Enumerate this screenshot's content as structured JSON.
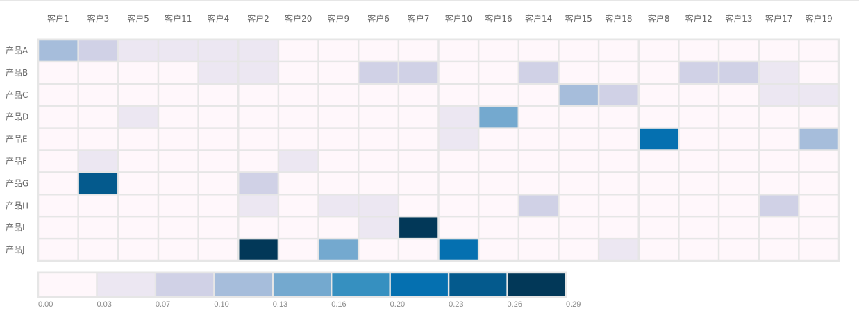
{
  "chart_data": {
    "type": "heatmap",
    "columns": [
      "客户1",
      "客户3",
      "客户5",
      "客户11",
      "客户4",
      "客户2",
      "客户20",
      "客户9",
      "客户6",
      "客户7",
      "客户10",
      "客户16",
      "客户14",
      "客户15",
      "客户18",
      "客户8",
      "客户12",
      "客户13",
      "客户17",
      "客户19"
    ],
    "rows": [
      "产品A",
      "产品B",
      "产品C",
      "产品D",
      "产品E",
      "产品F",
      "产品G",
      "产品H",
      "产品I",
      "产品J"
    ],
    "values": [
      [
        0.1,
        0.07,
        0.04,
        0.04,
        0.04,
        0.04,
        0.0,
        0.0,
        0.0,
        0.0,
        0.0,
        0.0,
        0.0,
        0.0,
        0.0,
        0.0,
        0.0,
        0.0,
        0.0,
        0.0
      ],
      [
        0.0,
        0.0,
        0.0,
        0.0,
        0.04,
        0.04,
        0.0,
        0.0,
        0.07,
        0.07,
        0.0,
        0.0,
        0.07,
        0.0,
        0.0,
        0.0,
        0.07,
        0.07,
        0.04,
        0.0
      ],
      [
        0.0,
        0.0,
        0.0,
        0.0,
        0.0,
        0.0,
        0.0,
        0.0,
        0.0,
        0.0,
        0.0,
        0.0,
        0.0,
        0.1,
        0.07,
        0.0,
        0.0,
        0.0,
        0.04,
        0.04
      ],
      [
        0.0,
        0.0,
        0.04,
        0.0,
        0.0,
        0.0,
        0.0,
        0.0,
        0.0,
        0.0,
        0.04,
        0.13,
        0.0,
        0.0,
        0.0,
        0.0,
        0.0,
        0.0,
        0.0,
        0.0
      ],
      [
        0.0,
        0.0,
        0.0,
        0.0,
        0.0,
        0.0,
        0.0,
        0.0,
        0.0,
        0.0,
        0.04,
        0.0,
        0.0,
        0.0,
        0.0,
        0.21,
        0.0,
        0.0,
        0.0,
        0.1
      ],
      [
        0.0,
        0.04,
        0.0,
        0.0,
        0.0,
        0.0,
        0.04,
        0.0,
        0.0,
        0.0,
        0.0,
        0.0,
        0.0,
        0.0,
        0.0,
        0.0,
        0.0,
        0.0,
        0.0,
        0.0
      ],
      [
        0.0,
        0.24,
        0.0,
        0.0,
        0.0,
        0.07,
        0.0,
        0.0,
        0.0,
        0.0,
        0.0,
        0.0,
        0.0,
        0.0,
        0.0,
        0.0,
        0.0,
        0.0,
        0.0,
        0.0
      ],
      [
        0.0,
        0.0,
        0.0,
        0.0,
        0.0,
        0.04,
        0.0,
        0.04,
        0.04,
        0.0,
        0.0,
        0.0,
        0.07,
        0.0,
        0.0,
        0.0,
        0.0,
        0.0,
        0.07,
        0.0
      ],
      [
        0.0,
        0.0,
        0.0,
        0.0,
        0.0,
        0.0,
        0.0,
        0.0,
        0.04,
        0.29,
        0.0,
        0.0,
        0.0,
        0.0,
        0.0,
        0.0,
        0.0,
        0.0,
        0.0,
        0.0
      ],
      [
        0.0,
        0.0,
        0.0,
        0.0,
        0.0,
        0.29,
        0.0,
        0.13,
        0.0,
        0.0,
        0.21,
        0.0,
        0.0,
        0.0,
        0.04,
        0.0,
        0.0,
        0.0,
        0.0,
        0.0
      ]
    ],
    "color_range": [
      0,
      0.29
    ],
    "colorscale": [
      "#fff7fb",
      "#ece7f2",
      "#d0d1e6",
      "#a6bddb",
      "#74a9cf",
      "#3690c0",
      "#0570b0",
      "#045a8d",
      "#023858"
    ],
    "legend_ticks": [
      "0.00",
      "0.03",
      "0.07",
      "0.10",
      "0.13",
      "0.16",
      "0.20",
      "0.23",
      "0.26",
      "0.29"
    ],
    "legend_position": "bottom",
    "grid_line_color": "#e6e6e6"
  }
}
